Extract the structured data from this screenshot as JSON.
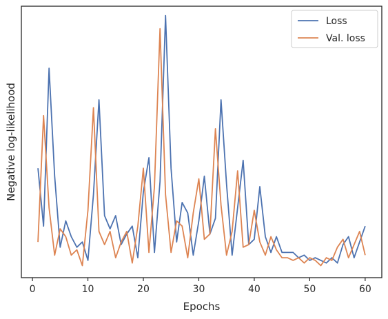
{
  "chart_data": {
    "type": "line",
    "title": "",
    "xlabel": "Epochs",
    "ylabel": "Negative log-likelihood",
    "xlim": [
      -2,
      63
    ],
    "ylim": [
      0,
      100
    ],
    "xticks": [
      0,
      10,
      20,
      30,
      40,
      50,
      60
    ],
    "yticks_visible": false,
    "grid": false,
    "legend_position": "top-right",
    "x": [
      1,
      2,
      3,
      4,
      5,
      6,
      7,
      8,
      9,
      10,
      11,
      12,
      13,
      14,
      15,
      16,
      17,
      18,
      19,
      20,
      21,
      22,
      23,
      24,
      25,
      26,
      27,
      28,
      29,
      30,
      31,
      32,
      33,
      34,
      35,
      36,
      37,
      38,
      39,
      40,
      41,
      42,
      43,
      44,
      45,
      46,
      47,
      48,
      49,
      50,
      51,
      52,
      53,
      54,
      55,
      56,
      57,
      58,
      59,
      60
    ],
    "series": [
      {
        "name": "Loss",
        "color": "#4c72b0",
        "values": [
          40,
          18,
          78,
          37,
          10,
          20,
          14,
          10,
          12,
          5,
          30,
          66,
          22,
          17,
          22,
          11,
          15,
          18,
          6,
          31,
          44,
          8,
          35,
          98,
          40,
          12,
          27,
          23,
          7,
          20,
          37,
          15,
          21,
          66,
          34,
          7,
          25,
          43,
          11,
          13,
          33,
          14,
          8,
          14,
          8,
          8,
          8,
          6,
          7,
          5,
          6,
          5,
          4,
          6,
          4,
          11,
          14,
          6,
          12,
          18
        ]
      },
      {
        "name": "Val. loss",
        "color": "#dd8452",
        "values": [
          12,
          60,
          25,
          7,
          17,
          14,
          7,
          9,
          3,
          24,
          63,
          16,
          11,
          16,
          6,
          12,
          16,
          4,
          18,
          40,
          8,
          33,
          93,
          30,
          8,
          20,
          18,
          6,
          23,
          36,
          13,
          15,
          55,
          26,
          7,
          16,
          39,
          10,
          11,
          24,
          12,
          7,
          14,
          9,
          6,
          6,
          5,
          6,
          4,
          6,
          5,
          3,
          6,
          5,
          10,
          13,
          6,
          11,
          16,
          7
        ]
      }
    ]
  }
}
